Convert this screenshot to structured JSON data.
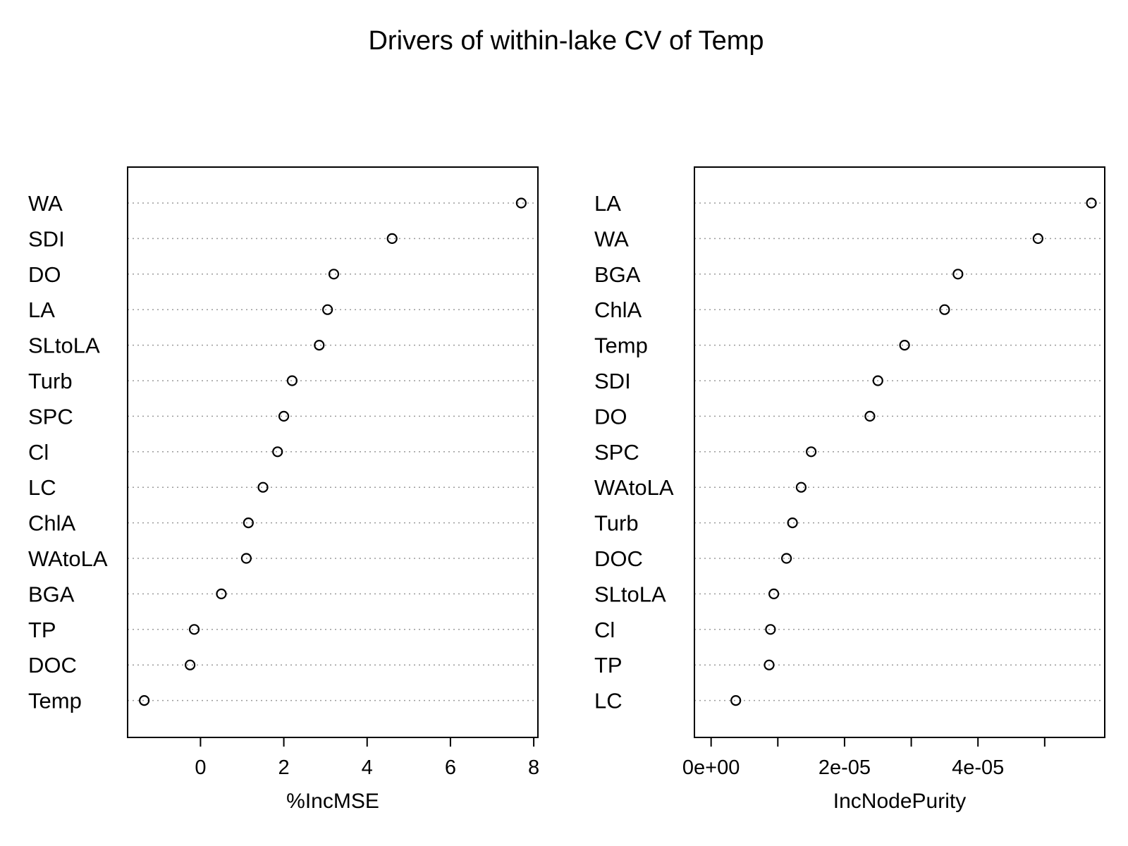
{
  "title": "Drivers of within-lake CV of Temp",
  "chart_data": [
    {
      "type": "dotchart",
      "title": "",
      "xlabel": "%IncMSE",
      "xlim": [
        -1.75,
        8.1
      ],
      "xticks": [
        0,
        2,
        4,
        6,
        8
      ],
      "xtick_labels": [
        "0",
        "2",
        "4",
        "6",
        "8"
      ],
      "grid": "dotted horizontal guide per variable",
      "categories": [
        "WA",
        "SDI",
        "DO",
        "LA",
        "SLtoLA",
        "Turb",
        "SPC",
        "Cl",
        "LC",
        "ChlA",
        "WAtoLA",
        "BGA",
        "TP",
        "DOC",
        "Temp"
      ],
      "values": [
        7.7,
        4.6,
        3.2,
        3.05,
        2.85,
        2.2,
        2.0,
        1.85,
        1.5,
        1.15,
        1.1,
        0.5,
        -0.15,
        -0.25,
        -1.35
      ]
    },
    {
      "type": "dotchart",
      "title": "",
      "xlabel": "IncNodePurity",
      "xlim": [
        -2.5e-06,
        5.9e-05
      ],
      "xticks": [
        0,
        1e-05,
        2e-05,
        3e-05,
        4e-05,
        5e-05
      ],
      "xtick_labels": [
        "0e+00",
        "",
        "2e-05",
        "",
        "4e-05",
        ""
      ],
      "grid": "dotted horizontal guide per variable",
      "categories": [
        "LA",
        "WA",
        "BGA",
        "ChlA",
        "Temp",
        "SDI",
        "DO",
        "SPC",
        "WAtoLA",
        "Turb",
        "DOC",
        "SLtoLA",
        "Cl",
        "TP",
        "LC"
      ],
      "values": [
        5.7e-05,
        4.9e-05,
        3.7e-05,
        3.5e-05,
        2.9e-05,
        2.5e-05,
        2.38e-05,
        1.5e-05,
        1.35e-05,
        1.22e-05,
        1.13e-05,
        9.4e-06,
        8.9e-06,
        8.7e-06,
        3.7e-06
      ]
    }
  ]
}
